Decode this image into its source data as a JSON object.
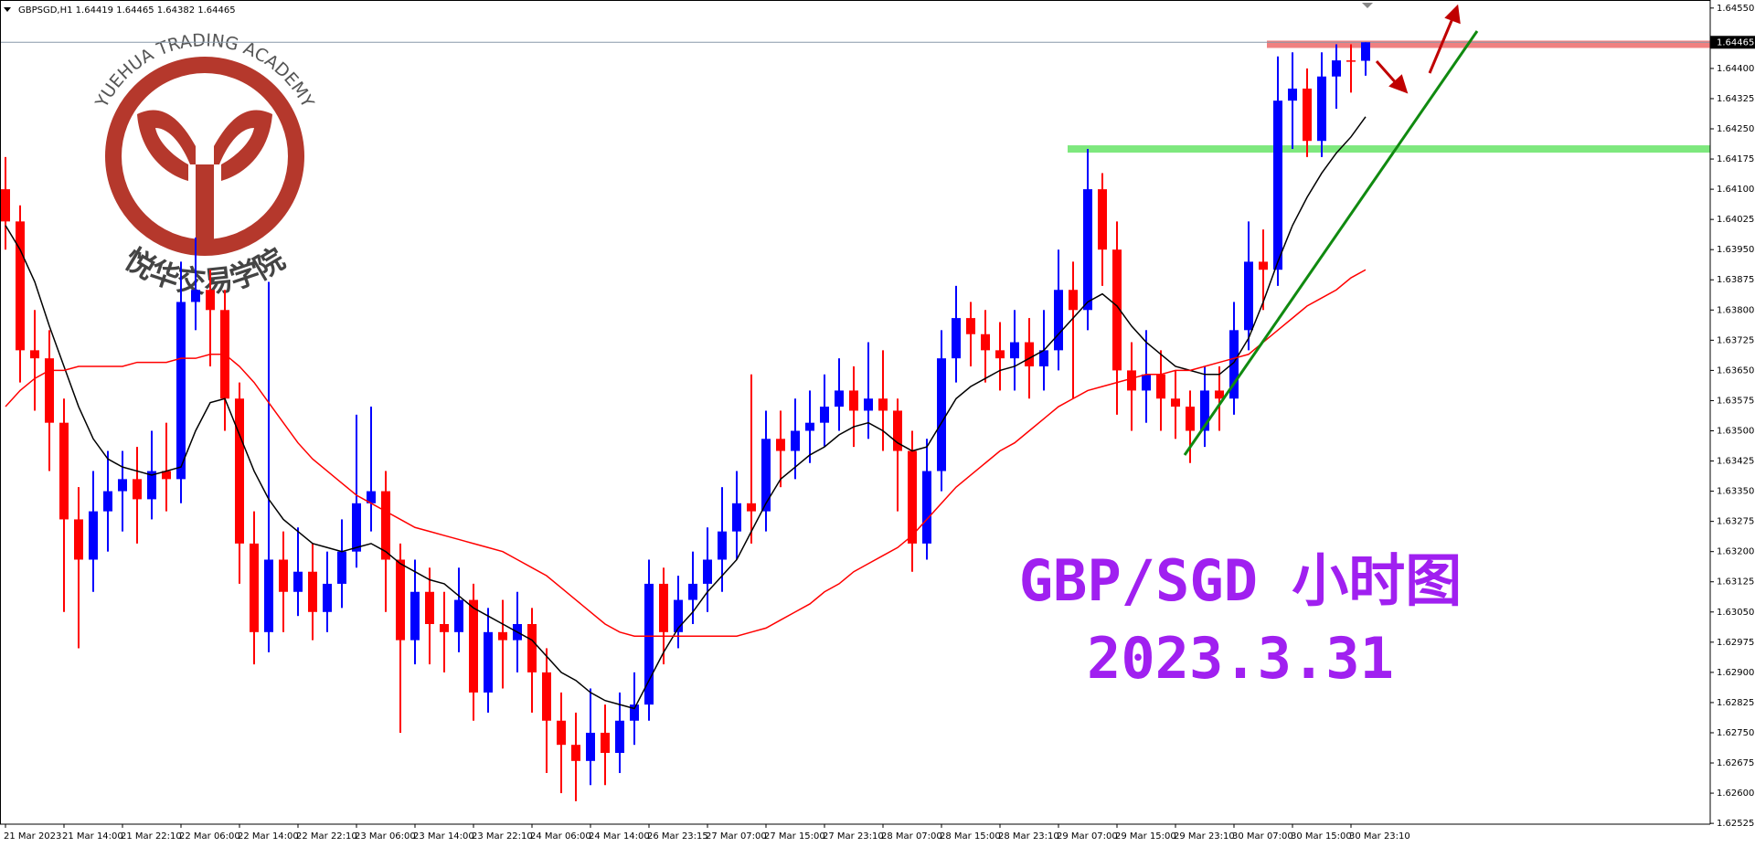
{
  "chart_data": {
    "type": "candlestick",
    "title": "GBPSGD,H1  1.64419 1.64465 1.64382 1.64465",
    "annotations": [
      "GBP/SGD 小时图",
      "2023.3.31"
    ],
    "annotation_color": "#a020f0",
    "watermark": {
      "title": "YUEHUA TRADING ACADEMY",
      "subtitle": "悦华交易学院",
      "color": "#b5382c"
    },
    "categories": [
      "21 Mar 2023",
      null,
      null,
      null,
      "21 Mar 14:00",
      null,
      null,
      null,
      "21 Mar 22:10",
      null,
      null,
      null,
      "22 Mar 06:00",
      null,
      null,
      null,
      "22 Mar 14:00",
      null,
      null,
      null,
      "22 Mar 22:10",
      null,
      null,
      null,
      "23 Mar 06:00",
      null,
      null,
      null,
      "23 Mar 14:00",
      null,
      null,
      null,
      "23 Mar 22:10",
      null,
      null,
      null,
      "24 Mar 06:00",
      null,
      null,
      null,
      "24 Mar 14:00",
      null,
      null,
      null,
      "26 Mar 23:15",
      null,
      null,
      null,
      "27 Mar 07:00",
      null,
      null,
      null,
      "27 Mar 15:00",
      null,
      null,
      null,
      "27 Mar 23:10",
      null,
      null,
      null,
      "28 Mar 07:00",
      null,
      null,
      null,
      "28 Mar 15:00",
      null,
      null,
      null,
      "28 Mar 23:10",
      null,
      null,
      null,
      "29 Mar 07:00",
      null,
      null,
      null,
      "29 Mar 15:00",
      null,
      null,
      null,
      "29 Mar 23:10",
      null,
      null,
      null,
      "30 Mar 07:00",
      null,
      null,
      null,
      "30 Mar 15:00",
      null,
      null,
      null,
      "30 Mar 23:10",
      null
    ],
    "open": [
      1.641,
      1.6402,
      1.637,
      1.6368,
      1.6352,
      1.6328,
      1.6318,
      1.633,
      1.6335,
      1.6338,
      1.6333,
      1.634,
      1.6338,
      1.6382,
      1.6385,
      1.638,
      1.6358,
      1.6322,
      1.63,
      1.6318,
      1.631,
      1.6315,
      1.6305,
      1.6312,
      1.632,
      1.6332,
      1.6335,
      1.6318,
      1.6298,
      1.631,
      1.6302,
      1.63,
      1.6308,
      1.6285,
      1.63,
      1.6298,
      1.6302,
      1.629,
      1.6278,
      1.6272,
      1.6268,
      1.6275,
      1.627,
      1.6278,
      1.6282,
      1.6312,
      1.63,
      1.6308,
      1.6312,
      1.6318,
      1.6325,
      1.6332,
      1.633,
      1.6348,
      1.6345,
      1.635,
      1.6352,
      1.6356,
      1.636,
      1.6355,
      1.6358,
      1.6355,
      1.6345,
      1.6322,
      1.634,
      1.6368,
      1.6378,
      1.6374,
      1.637,
      1.6368,
      1.6372,
      1.6366,
      1.637,
      1.6385,
      1.638,
      1.641,
      1.6395,
      1.6365,
      1.636,
      1.6364,
      1.6358,
      1.6356,
      1.635,
      1.636,
      1.6358,
      1.6375,
      1.6392,
      1.639,
      1.6432,
      1.6435,
      1.6422,
      1.6438,
      1.6442,
      1.64419
    ],
    "high": [
      1.6418,
      1.6406,
      1.638,
      1.6375,
      1.6358,
      1.6336,
      1.634,
      1.6345,
      1.6345,
      1.6346,
      1.635,
      1.6352,
      1.6392,
      1.6398,
      1.639,
      1.6385,
      1.6362,
      1.633,
      1.6387,
      1.6325,
      1.6326,
      1.6322,
      1.632,
      1.6328,
      1.6354,
      1.6356,
      1.634,
      1.6322,
      1.6318,
      1.6316,
      1.631,
      1.6316,
      1.6312,
      1.6306,
      1.6308,
      1.631,
      1.6306,
      1.6296,
      1.6285,
      1.628,
      1.6286,
      1.6282,
      1.6285,
      1.629,
      1.6318,
      1.6316,
      1.6314,
      1.632,
      1.6326,
      1.6336,
      1.634,
      1.6364,
      1.6355,
      1.6355,
      1.6358,
      1.636,
      1.6364,
      1.6368,
      1.6366,
      1.6372,
      1.637,
      1.6358,
      1.635,
      1.6348,
      1.6375,
      1.6386,
      1.6382,
      1.638,
      1.6377,
      1.638,
      1.6378,
      1.638,
      1.6395,
      1.6392,
      1.642,
      1.6414,
      1.6402,
      1.6372,
      1.6375,
      1.637,
      1.6365,
      1.636,
      1.6366,
      1.6366,
      1.6382,
      1.6402,
      1.64,
      1.6443,
      1.6444,
      1.644,
      1.6444,
      1.6446,
      1.6446,
      1.64465
    ],
    "low": [
      1.6395,
      1.6362,
      1.6355,
      1.634,
      1.6305,
      1.6296,
      1.631,
      1.632,
      1.6325,
      1.6322,
      1.6328,
      1.633,
      1.6332,
      1.6375,
      1.6366,
      1.635,
      1.6312,
      1.6292,
      1.6295,
      1.63,
      1.6304,
      1.6298,
      1.63,
      1.6306,
      1.6316,
      1.6325,
      1.6305,
      1.6275,
      1.6292,
      1.6292,
      1.629,
      1.6295,
      1.6278,
      1.628,
      1.6286,
      1.629,
      1.628,
      1.6265,
      1.626,
      1.6258,
      1.6262,
      1.6262,
      1.6265,
      1.6272,
      1.6278,
      1.6292,
      1.6296,
      1.6302,
      1.6305,
      1.631,
      1.6318,
      1.6322,
      1.6325,
      1.6336,
      1.6338,
      1.6342,
      1.6346,
      1.635,
      1.6346,
      1.6348,
      1.6345,
      1.633,
      1.6315,
      1.6318,
      1.6335,
      1.6362,
      1.6366,
      1.6362,
      1.636,
      1.636,
      1.6358,
      1.636,
      1.6365,
      1.6358,
      1.6375,
      1.6386,
      1.6354,
      1.635,
      1.6352,
      1.635,
      1.6348,
      1.6342,
      1.6346,
      1.635,
      1.6354,
      1.637,
      1.638,
      1.6386,
      1.642,
      1.6418,
      1.6418,
      1.643,
      1.6434,
      1.64382
    ],
    "close": [
      1.6402,
      1.637,
      1.6368,
      1.6352,
      1.6328,
      1.6318,
      1.633,
      1.6335,
      1.6338,
      1.6333,
      1.634,
      1.6338,
      1.6382,
      1.6385,
      1.638,
      1.6358,
      1.6322,
      1.63,
      1.6318,
      1.631,
      1.6315,
      1.6305,
      1.6312,
      1.632,
      1.6332,
      1.6335,
      1.6318,
      1.6298,
      1.631,
      1.6302,
      1.63,
      1.6308,
      1.6285,
      1.63,
      1.6298,
      1.6302,
      1.629,
      1.6278,
      1.6272,
      1.6268,
      1.6275,
      1.627,
      1.6278,
      1.6282,
      1.6312,
      1.63,
      1.6308,
      1.6312,
      1.6318,
      1.6325,
      1.6332,
      1.633,
      1.6348,
      1.6345,
      1.635,
      1.6352,
      1.6356,
      1.636,
      1.6355,
      1.6358,
      1.6355,
      1.6345,
      1.6322,
      1.634,
      1.6368,
      1.6378,
      1.6374,
      1.637,
      1.6368,
      1.6372,
      1.6366,
      1.637,
      1.6385,
      1.638,
      1.641,
      1.6395,
      1.6365,
      1.636,
      1.6364,
      1.6358,
      1.6356,
      1.635,
      1.636,
      1.6358,
      1.6375,
      1.6392,
      1.639,
      1.6432,
      1.6435,
      1.6422,
      1.6438,
      1.6442,
      1.64419,
      1.64465
    ],
    "up_color": "#0000ff",
    "down_color": "#ff0000",
    "overlays": [
      {
        "color": "#000000",
        "values": [
          1.6401,
          1.6395,
          1.6387,
          1.6376,
          1.6366,
          1.6356,
          1.6348,
          1.6343,
          1.6341,
          1.634,
          1.6339,
          1.634,
          1.6341,
          1.635,
          1.6357,
          1.6358,
          1.6349,
          1.634,
          1.6333,
          1.6328,
          1.6325,
          1.6322,
          1.6321,
          1.632,
          1.6321,
          1.6322,
          1.632,
          1.6317,
          1.6315,
          1.6313,
          1.6312,
          1.6309,
          1.6306,
          1.6304,
          1.6302,
          1.63,
          1.6298,
          1.6294,
          1.629,
          1.6288,
          1.6285,
          1.6283,
          1.6282,
          1.6281,
          1.6288,
          1.6295,
          1.6301,
          1.6305,
          1.631,
          1.6314,
          1.6318,
          1.6325,
          1.6332,
          1.6338,
          1.6341,
          1.6344,
          1.6346,
          1.6349,
          1.6351,
          1.6352,
          1.635,
          1.6347,
          1.6345,
          1.6346,
          1.6352,
          1.6358,
          1.6361,
          1.6363,
          1.6365,
          1.6366,
          1.6368,
          1.637,
          1.6374,
          1.6378,
          1.6382,
          1.6384,
          1.6381,
          1.6376,
          1.6372,
          1.6369,
          1.6366,
          1.6365,
          1.6364,
          1.6364,
          1.6367,
          1.6373,
          1.6382,
          1.6392,
          1.6401,
          1.6408,
          1.6414,
          1.6419,
          1.6423,
          1.6428
        ]
      },
      {
        "color": "#ff0000",
        "values": [
          1.6356,
          1.636,
          1.6363,
          1.6365,
          1.6365,
          1.6366,
          1.6366,
          1.6366,
          1.6366,
          1.6367,
          1.6367,
          1.6367,
          1.6368,
          1.6368,
          1.6369,
          1.6369,
          1.6366,
          1.6362,
          1.6357,
          1.6352,
          1.6347,
          1.6343,
          1.634,
          1.6337,
          1.6334,
          1.6332,
          1.633,
          1.6328,
          1.6326,
          1.6325,
          1.6324,
          1.6323,
          1.6322,
          1.6321,
          1.632,
          1.6318,
          1.6316,
          1.6314,
          1.6311,
          1.6308,
          1.6305,
          1.6302,
          1.63,
          1.6299,
          1.6299,
          1.6299,
          1.6299,
          1.6299,
          1.6299,
          1.6299,
          1.6299,
          1.63,
          1.6301,
          1.6303,
          1.6305,
          1.6307,
          1.631,
          1.6312,
          1.6315,
          1.6317,
          1.6319,
          1.6321,
          1.6324,
          1.6328,
          1.6332,
          1.6336,
          1.6339,
          1.6342,
          1.6345,
          1.6347,
          1.635,
          1.6353,
          1.6356,
          1.6358,
          1.636,
          1.6361,
          1.6362,
          1.6363,
          1.6364,
          1.6364,
          1.6365,
          1.6365,
          1.6366,
          1.6367,
          1.6368,
          1.6369,
          1.6372,
          1.6375,
          1.6378,
          1.6381,
          1.6383,
          1.6385,
          1.6388,
          1.639
        ]
      }
    ],
    "levels": [
      {
        "value": 1.6446,
        "color": "#f08080"
      },
      {
        "value": 1.642,
        "color": "#7ee87e"
      }
    ],
    "price_label": {
      "value": 1.64465,
      "label": "1.64465"
    },
    "ylim": [
      1.62523,
      1.6457
    ],
    "yticks": [
      {
        "value": 1.6455,
        "label": "1.64550"
      },
      {
        "value": 1.644,
        "label": "1.64400"
      },
      1.64325,
      {
        "value": 1.6425,
        "label": "1.64250"
      },
      1.64175,
      {
        "value": 1.641,
        "label": "1.64100"
      },
      1.64025,
      {
        "value": 1.6395,
        "label": "1.63950"
      },
      1.63875,
      {
        "value": 1.638,
        "label": "1.63800"
      },
      1.63725,
      {
        "value": 1.6365,
        "label": "1.63650"
      },
      1.63575,
      {
        "value": 1.635,
        "label": "1.63500"
      },
      1.63425,
      {
        "value": 1.6335,
        "label": "1.63350"
      },
      1.63275,
      {
        "value": 1.632,
        "label": "1.63200"
      },
      1.63125,
      {
        "value": 1.6305,
        "label": "1.63050"
      },
      1.62975,
      {
        "value": 1.629,
        "label": "1.62900"
      },
      1.62825,
      {
        "value": 1.6275,
        "label": "1.62750"
      },
      1.62675,
      {
        "value": 1.626,
        "label": "1.62600"
      },
      1.62525
    ]
  }
}
